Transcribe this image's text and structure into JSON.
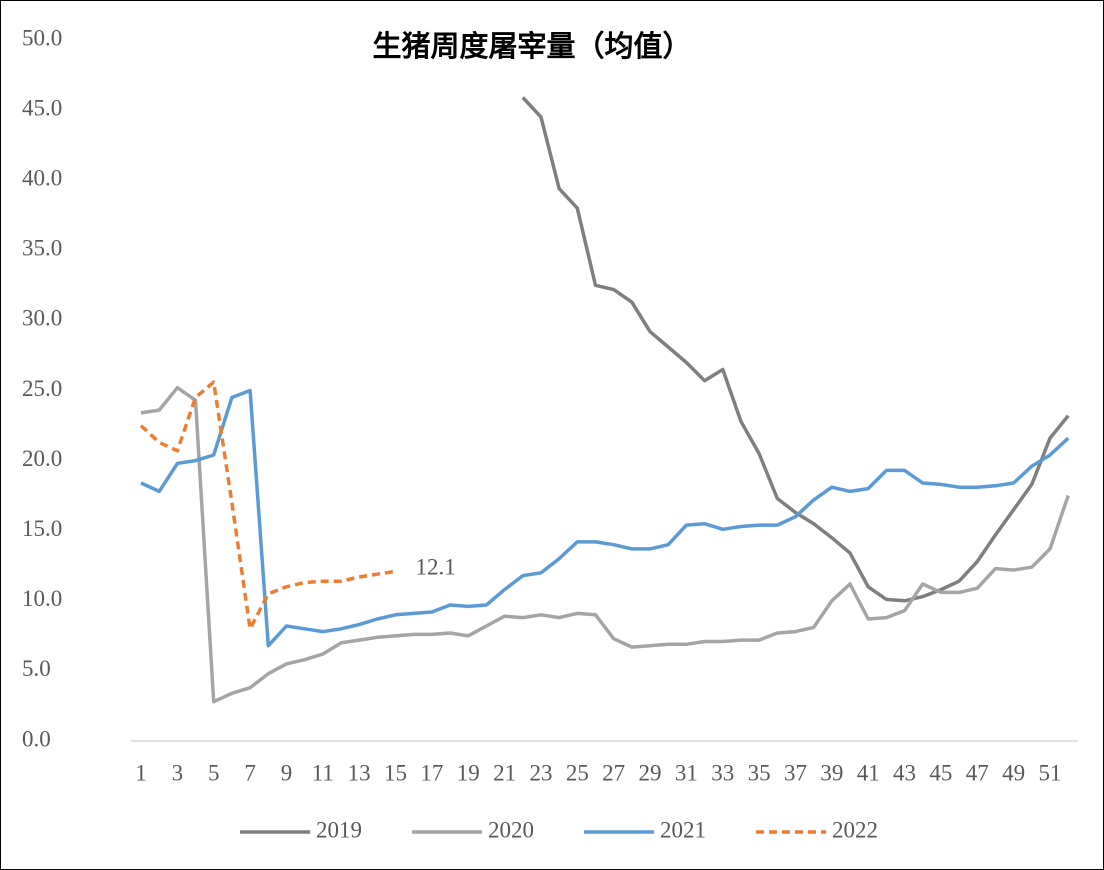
{
  "chart_data": {
    "type": "line",
    "title": "生猪周度屠宰量（均值）",
    "categories": [
      1,
      null,
      3,
      null,
      5,
      null,
      7,
      null,
      9,
      null,
      11,
      null,
      13,
      null,
      15,
      null,
      17,
      null,
      19,
      null,
      21,
      null,
      23,
      null,
      25,
      null,
      27,
      null,
      29,
      null,
      31,
      null,
      33,
      null,
      35,
      null,
      37,
      null,
      39,
      null,
      41,
      null,
      43,
      null,
      45,
      null,
      47,
      null,
      49,
      null,
      51,
      null
    ],
    "ylim": [
      0,
      50
    ],
    "yticks": [
      {
        "value": 0,
        "label": "0.0"
      },
      {
        "value": 5,
        "label": "5.0"
      },
      {
        "value": 10,
        "label": "10.0"
      },
      {
        "value": 15,
        "label": "15.0"
      },
      {
        "value": 20,
        "label": "20.0"
      },
      {
        "value": 25,
        "label": "25.0"
      },
      {
        "value": 30,
        "label": "30.0"
      },
      {
        "value": 35,
        "label": "35.0"
      },
      {
        "value": 40,
        "label": "40.0"
      },
      {
        "value": 45,
        "label": "45.0"
      },
      {
        "value": 50,
        "label": "50.0"
      }
    ],
    "grid": false,
    "legend": "bottom",
    "series": [
      {
        "name": "2019",
        "color": "#7f7f7f",
        "style": "solid",
        "values": [
          null,
          null,
          null,
          null,
          null,
          null,
          null,
          null,
          null,
          null,
          null,
          null,
          null,
          null,
          null,
          null,
          null,
          null,
          null,
          null,
          null,
          45.9,
          44.5,
          39.4,
          38.0,
          32.5,
          32.2,
          31.3,
          29.2,
          28.1,
          27.0,
          25.7,
          26.5,
          22.8,
          20.5,
          17.3,
          16.3,
          15.5,
          14.5,
          13.4,
          11.0,
          10.1,
          10.0,
          10.3,
          10.8,
          11.4,
          12.8,
          14.7,
          16.5,
          18.3,
          21.6,
          23.2
        ]
      },
      {
        "name": "2020",
        "color": "#a5a5a5",
        "style": "solid",
        "values": [
          23.4,
          23.6,
          25.2,
          24.3,
          2.8,
          3.4,
          3.8,
          4.8,
          5.5,
          5.8,
          6.2,
          7.0,
          7.2,
          7.4,
          7.5,
          7.6,
          7.6,
          7.7,
          7.5,
          8.2,
          8.9,
          8.8,
          9.0,
          8.8,
          9.1,
          9.0,
          7.3,
          6.7,
          6.8,
          6.9,
          6.9,
          7.1,
          7.1,
          7.2,
          7.2,
          7.7,
          7.8,
          8.1,
          10.0,
          11.2,
          8.7,
          8.8,
          9.3,
          11.2,
          10.6,
          10.6,
          10.9,
          12.3,
          12.2,
          12.4,
          13.7,
          17.5
        ]
      },
      {
        "name": "2021",
        "color": "#5b9bd5",
        "style": "solid",
        "values": [
          18.4,
          17.8,
          19.8,
          20.0,
          20.4,
          24.5,
          25.0,
          6.8,
          8.2,
          8.0,
          7.8,
          8.0,
          8.3,
          8.7,
          9.0,
          9.1,
          9.2,
          9.7,
          9.6,
          9.7,
          10.8,
          11.8,
          12.0,
          13.0,
          14.2,
          14.2,
          14.0,
          13.7,
          13.7,
          14.0,
          15.4,
          15.5,
          15.1,
          15.3,
          15.4,
          15.4,
          16.0,
          17.2,
          18.1,
          17.8,
          18.0,
          19.3,
          19.3,
          18.4,
          18.3,
          18.1,
          18.1,
          18.2,
          18.4,
          19.6,
          20.4,
          21.6
        ]
      },
      {
        "name": "2022",
        "color": "#ed7d31",
        "style": "dashed",
        "values": [
          22.5,
          21.3,
          20.7,
          24.5,
          25.6,
          17.0,
          8.0,
          10.5,
          11.0,
          11.3,
          11.4,
          11.4,
          11.7,
          11.9,
          12.1,
          null,
          null,
          null,
          null,
          null,
          null,
          null,
          null,
          null,
          null,
          null,
          null,
          null,
          null,
          null,
          null,
          null,
          null,
          null,
          null,
          null,
          null,
          null,
          null,
          null,
          null,
          null,
          null,
          null,
          null,
          null,
          null,
          null,
          null,
          null,
          null,
          null
        ],
        "value_labels": [
          null,
          null,
          null,
          null,
          null,
          null,
          null,
          null,
          null,
          null,
          null,
          null,
          null,
          null,
          "12.1",
          null,
          null,
          null,
          null,
          null,
          null,
          null,
          null,
          null,
          null,
          null,
          null,
          null,
          null,
          null,
          null,
          null,
          null,
          null,
          null,
          null,
          null,
          null,
          null,
          null,
          null,
          null,
          null,
          null,
          null,
          null,
          null,
          null,
          null,
          null,
          null,
          null
        ]
      }
    ]
  }
}
